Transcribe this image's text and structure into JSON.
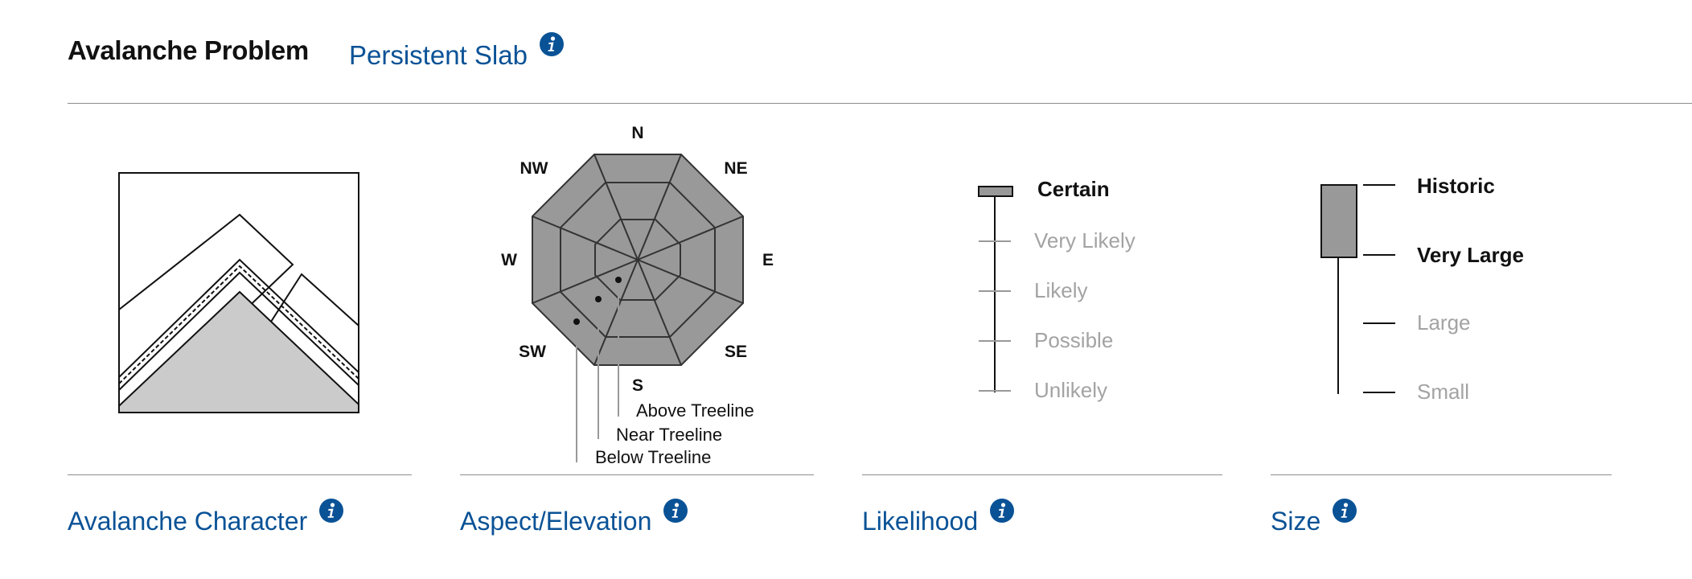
{
  "header": {
    "title": "Avalanche Problem",
    "problem_type": "Persistent Slab"
  },
  "panels": {
    "character": {
      "label": "Avalanche Character"
    },
    "aspect": {
      "label": "Aspect/Elevation",
      "compass": [
        "N",
        "NE",
        "E",
        "SE",
        "S",
        "SW",
        "W",
        "NW"
      ],
      "elevations": [
        "Above Treeline",
        "Near Treeline",
        "Below Treeline"
      ]
    },
    "likelihood": {
      "label": "Likelihood",
      "levels": [
        "Certain",
        "Very Likely",
        "Likely",
        "Possible",
        "Unlikely"
      ],
      "selected": [
        "Certain"
      ]
    },
    "size": {
      "label": "Size",
      "levels": [
        "Historic",
        "Very Large",
        "Large",
        "Small"
      ],
      "selected_range": [
        "Very Large",
        "Historic"
      ]
    }
  },
  "colors": {
    "accent": "#0a5296",
    "fill_gray": "#999999",
    "ground_gray": "#cbcbcb",
    "inactive_text": "#a3a3a3"
  },
  "icons": {
    "info": "info-circle-icon"
  }
}
